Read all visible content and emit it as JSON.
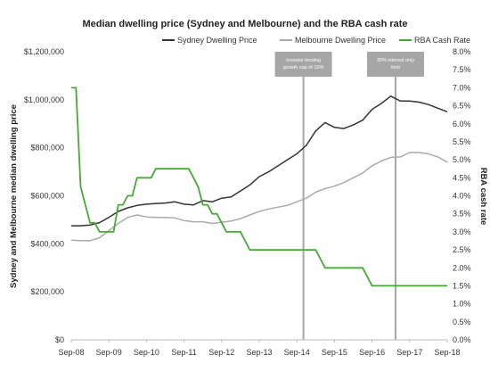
{
  "chart_data": {
    "type": "line",
    "title": "Median dwelling price (Sydney and Melbourne) and the RBA cash rate",
    "ylabel_left": "Sydney and Melbourne median dwelling price",
    "ylabel_right": "RBA cash rate",
    "x_tick_labels": [
      "Sep-08",
      "Sep-09",
      "Sep-10",
      "Sep-11",
      "Sep-12",
      "Sep-13",
      "Sep-14",
      "Sep-15",
      "Sep-16",
      "Sep-17",
      "Sep-18"
    ],
    "x_range": [
      0,
      40
    ],
    "y_left": {
      "min": 0,
      "max": 1200000,
      "step": 200000,
      "tick_labels": [
        "$0",
        "$200,000",
        "$400,000",
        "$600,000",
        "$800,000",
        "$1,000,000",
        "$1,200,000"
      ]
    },
    "y_right": {
      "min": 0,
      "max": 8,
      "step": 0.5,
      "tick_labels": [
        "0.0%",
        "0.5%",
        "1.0%",
        "1.5%",
        "2.0%",
        "2.5%",
        "3.0%",
        "3.5%",
        "4.0%",
        "4.5%",
        "5.0%",
        "5.5%",
        "6.0%",
        "6.5%",
        "7.0%",
        "7.5%",
        "8.0%"
      ]
    },
    "legend_position": "top-right",
    "grid": false,
    "series": [
      {
        "name": "Sydney Dwelling Price",
        "axis": "left",
        "color": "#333333",
        "x": [
          0,
          1,
          2,
          3,
          4,
          5,
          6,
          7,
          8,
          9,
          10,
          11,
          12,
          13,
          14,
          15,
          16,
          17,
          18,
          19,
          20,
          21,
          22,
          23,
          24,
          25,
          26,
          27,
          28,
          29,
          30,
          31,
          32,
          33,
          34,
          35,
          36,
          37,
          38,
          39,
          40
        ],
        "y": [
          475000,
          475000,
          478000,
          488000,
          510000,
          535000,
          550000,
          560000,
          565000,
          568000,
          570000,
          575000,
          565000,
          562000,
          580000,
          575000,
          590000,
          595000,
          620000,
          645000,
          680000,
          700000,
          725000,
          750000,
          775000,
          810000,
          870000,
          905000,
          885000,
          880000,
          895000,
          915000,
          960000,
          985000,
          1015000,
          995000,
          995000,
          990000,
          980000,
          965000,
          950000
        ]
      },
      {
        "name": "Melbourne Dwelling Price",
        "axis": "left",
        "color": "#aaaaaa",
        "x": [
          0,
          1,
          2,
          3,
          4,
          5,
          6,
          7,
          8,
          9,
          10,
          11,
          12,
          13,
          14,
          15,
          16,
          17,
          18,
          19,
          20,
          21,
          22,
          23,
          24,
          25,
          26,
          27,
          28,
          29,
          30,
          31,
          32,
          33,
          34,
          35,
          36,
          37,
          38,
          39,
          40
        ],
        "y": [
          415000,
          413000,
          413000,
          425000,
          455000,
          485000,
          510000,
          520000,
          512000,
          510000,
          510000,
          508000,
          497000,
          492000,
          492000,
          485000,
          490000,
          495000,
          505000,
          520000,
          535000,
          545000,
          553000,
          560000,
          575000,
          590000,
          615000,
          630000,
          640000,
          655000,
          675000,
          695000,
          725000,
          745000,
          760000,
          762000,
          780000,
          780000,
          775000,
          762000,
          740000
        ]
      },
      {
        "name": "RBA Cash Rate",
        "axis": "right",
        "color": "#44aa33",
        "x": [
          0,
          0.5,
          1,
          1.5,
          2,
          2.5,
          3,
          3.5,
          4,
          4.5,
          5,
          5.5,
          6,
          6.5,
          7,
          7.5,
          8,
          8.5,
          9,
          9.5,
          10,
          10.5,
          11,
          11.5,
          12,
          12.5,
          13,
          13.5,
          14,
          14.5,
          15,
          15.5,
          16,
          16.5,
          17,
          17.5,
          18,
          18.5,
          19,
          19.5,
          20,
          20.5,
          21,
          21.5,
          22,
          22.5,
          23,
          23.5,
          24,
          24.5,
          25,
          25.5,
          26,
          26.5,
          27,
          27.5,
          28,
          28.5,
          29,
          29.5,
          30,
          30.5,
          31,
          31.5,
          32,
          32.5,
          33,
          33.5,
          34,
          34.5,
          35,
          35.5,
          36,
          36.5,
          37,
          37.5,
          38,
          38.5,
          39,
          39.5,
          40
        ],
        "y": [
          7.0,
          7.0,
          4.25,
          3.75,
          3.25,
          3.25,
          3.0,
          3.0,
          3.0,
          3.0,
          3.75,
          3.75,
          4.0,
          4.0,
          4.5,
          4.5,
          4.5,
          4.5,
          4.75,
          4.75,
          4.75,
          4.75,
          4.75,
          4.75,
          4.75,
          4.75,
          4.5,
          4.25,
          3.75,
          3.75,
          3.5,
          3.5,
          3.25,
          3.0,
          3.0,
          3.0,
          3.0,
          2.75,
          2.5,
          2.5,
          2.5,
          2.5,
          2.5,
          2.5,
          2.5,
          2.5,
          2.5,
          2.5,
          2.5,
          2.5,
          2.5,
          2.5,
          2.5,
          2.25,
          2.0,
          2.0,
          2.0,
          2.0,
          2.0,
          2.0,
          2.0,
          2.0,
          2.0,
          1.75,
          1.5,
          1.5,
          1.5,
          1.5,
          1.5,
          1.5,
          1.5,
          1.5,
          1.5,
          1.5,
          1.5,
          1.5,
          1.5,
          1.5,
          1.5,
          1.5,
          1.5
        ]
      }
    ],
    "annotations": [
      {
        "x": 24.7,
        "lines": [
          "Investor lending",
          "growth cap of 10%"
        ],
        "box_color": "#a6a6a6",
        "line_color": "#a6a6a6"
      },
      {
        "x": 34.5,
        "lines": [
          "30% interest only",
          "limit"
        ],
        "box_color": "#a6a6a6",
        "line_color": "#a6a6a6"
      }
    ]
  }
}
